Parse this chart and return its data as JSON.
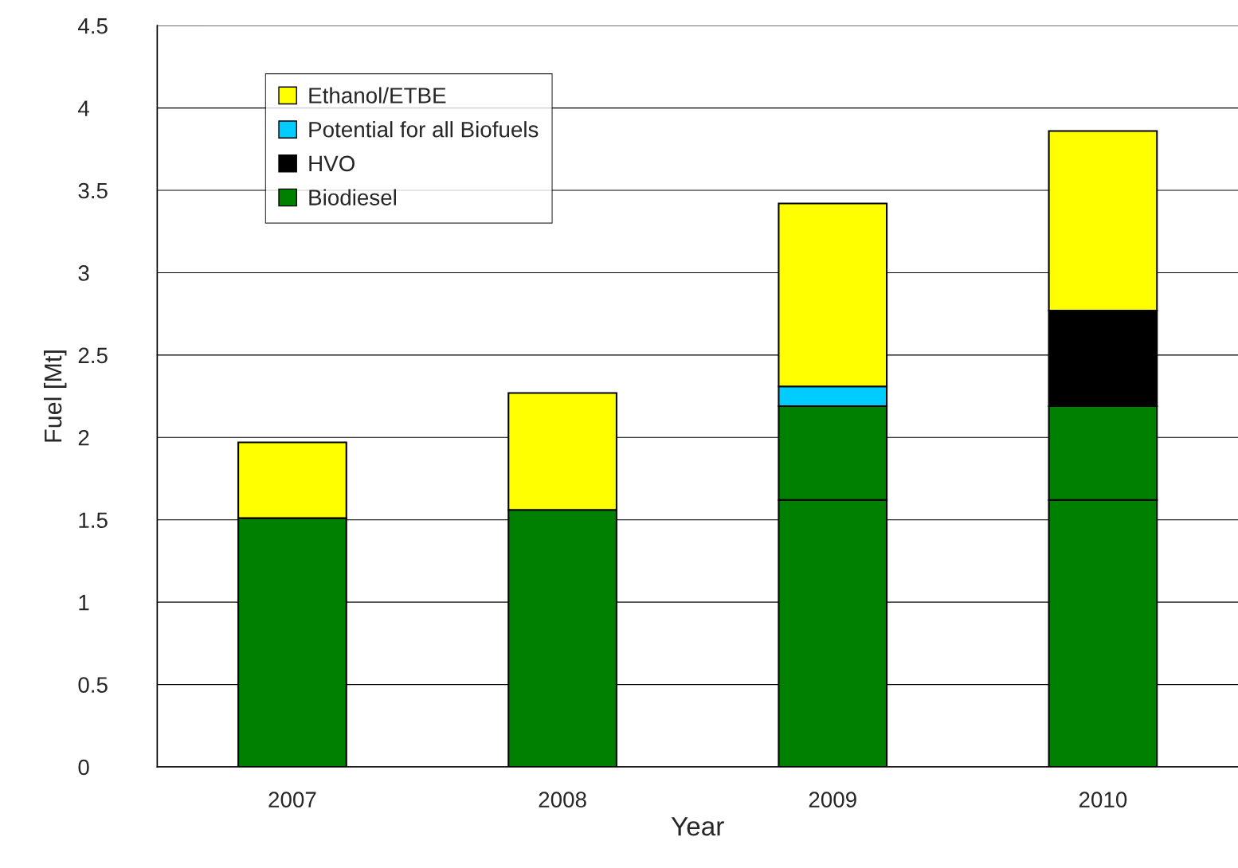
{
  "chart_data": {
    "type": "bar",
    "stacked": true,
    "xlabel": "Year",
    "ylabel": "Fuel [Mt]",
    "categories": [
      "2007",
      "2008",
      "2009",
      "2010"
    ],
    "series": [
      {
        "name": "Biodiesel",
        "color": "#008000",
        "values": [
          1.51,
          1.56,
          1.62,
          1.62
        ]
      },
      {
        "color": "#008000",
        "values": [
          null,
          null,
          0.57,
          0.57
        ]
      },
      {
        "name": "HVO",
        "color": "#000000",
        "values": [
          null,
          null,
          null,
          0.58
        ]
      },
      {
        "name": "Potential for all Biofuels",
        "color": "#00ccff",
        "values": [
          null,
          null,
          0.12,
          null
        ]
      },
      {
        "name": "Ethanol/ETBE",
        "color": "#ffff00",
        "values": [
          0.46,
          0.71,
          1.11,
          1.09
        ]
      }
    ],
    "ylim": [
      0,
      4.5
    ],
    "yticks": [
      0,
      0.5,
      1,
      1.5,
      2,
      2.5,
      3,
      3.5,
      4,
      4.5
    ],
    "grid": "y",
    "legend": "top left"
  }
}
